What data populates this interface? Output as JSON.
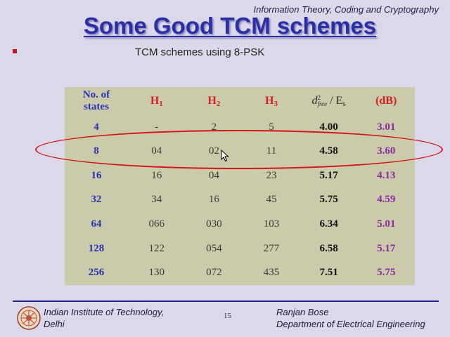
{
  "header": {
    "course": "Information Theory, Coding and  Cryptography"
  },
  "title": "Some Good TCM schemes",
  "subtitle": "TCM schemes using 8-PSK",
  "table": {
    "headers": {
      "states_line1": "No. of",
      "states_line2": "states",
      "h1": "H",
      "h1_sub": "1",
      "h2": "H",
      "h2_sub": "2",
      "h3": "H",
      "h3_sub": "3",
      "dfree_d": "d",
      "dfree_sup": "2",
      "dfree_sub": "free",
      "dfree_rest": " / E",
      "dfree_es_sub": "s",
      "db": "(dB)"
    },
    "rows": [
      {
        "states": "4",
        "h1": "-",
        "h2": "2",
        "h3": "5",
        "dfree": "4.00",
        "db": "3.01"
      },
      {
        "states": "8",
        "h1": "04",
        "h2": "02",
        "h3": "11",
        "dfree": "4.58",
        "db": "3.60"
      },
      {
        "states": "16",
        "h1": "16",
        "h2": "04",
        "h3": "23",
        "dfree": "5.17",
        "db": "4.13"
      },
      {
        "states": "32",
        "h1": "34",
        "h2": "16",
        "h3": "45",
        "dfree": "5.75",
        "db": "4.59"
      },
      {
        "states": "64",
        "h1": "066",
        "h2": "030",
        "h3": "103",
        "dfree": "6.34",
        "db": "5.01"
      },
      {
        "states": "128",
        "h1": "122",
        "h2": "054",
        "h3": "277",
        "dfree": "6.58",
        "db": "5.17"
      },
      {
        "states": "256",
        "h1": "130",
        "h2": "072",
        "h3": "435",
        "dfree": "7.51",
        "db": "5.75"
      }
    ]
  },
  "footer": {
    "institute_line1": "Indian Institute of Technology,",
    "institute_line2": "Delhi",
    "page": "15",
    "author": "Ranjan Bose",
    "department": "Department of Electrical Engineering"
  },
  "colors": {
    "title": "#2b2fa6",
    "table_bg": "#cbcbab",
    "highlight": "#d11414",
    "header_h": "#d51f1f",
    "states": "#2533ad",
    "db": "#8a2aa0"
  }
}
